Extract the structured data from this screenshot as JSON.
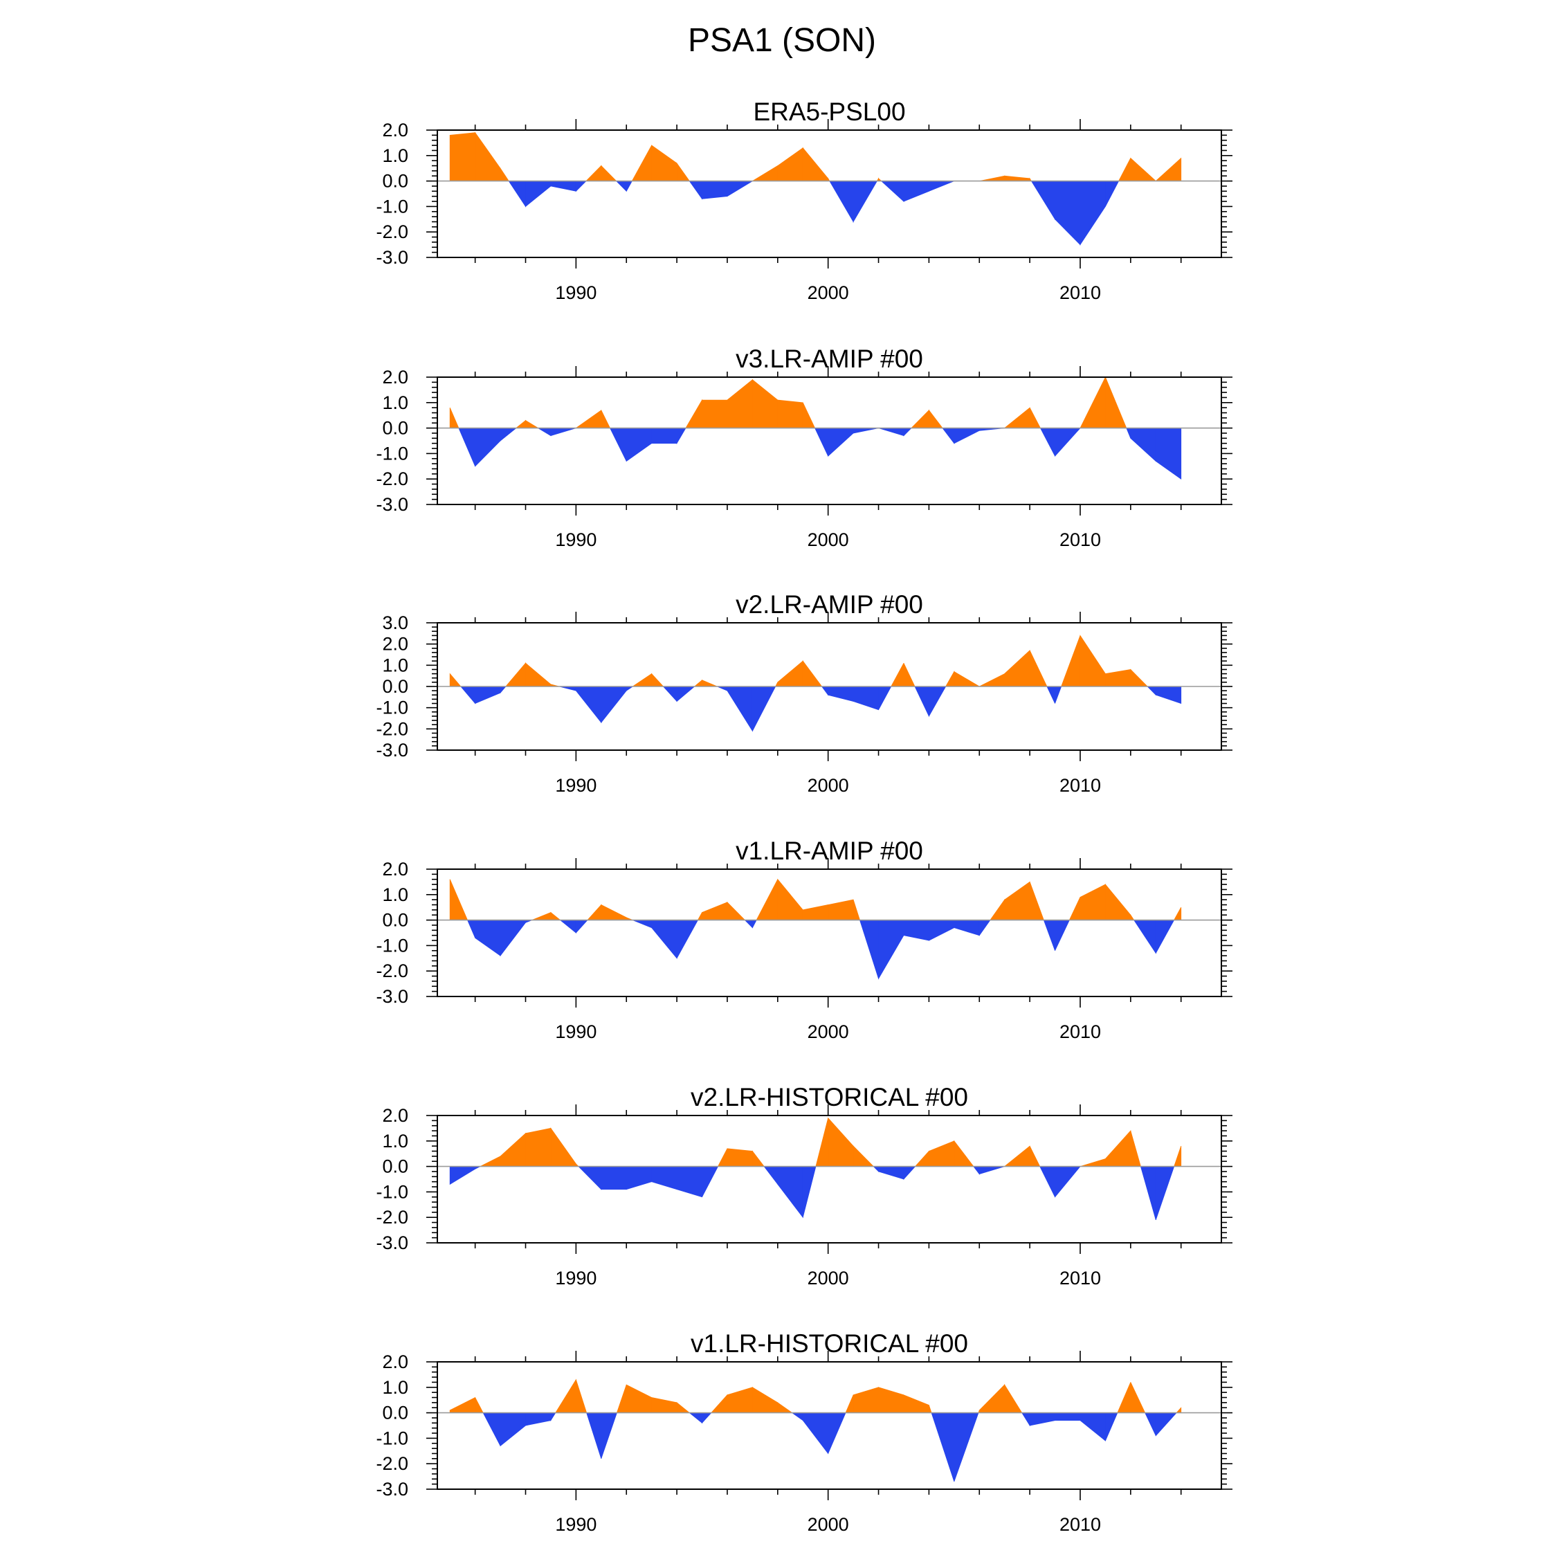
{
  "title": "PSA1 (SON)",
  "colors": {
    "positive": "#ff7f00",
    "negative": "#2644ec",
    "frame": "#000000",
    "zero_line": "#9a9a9a"
  },
  "chart_data": [
    {
      "type": "area",
      "title": "ERA5-PSL00",
      "xlabel": "",
      "ylabel": "",
      "xlim": [
        1984.5,
        2015.6
      ],
      "ylim": [
        -3.0,
        2.0
      ],
      "x": [
        1985,
        1986,
        1987,
        1988,
        1989,
        1990,
        1991,
        1992,
        1993,
        1994,
        1995,
        1996,
        1997,
        1998,
        1999,
        2000,
        2001,
        2002,
        2003,
        2004,
        2005,
        2006,
        2007,
        2008,
        2009,
        2010,
        2011,
        2012,
        2013,
        2014
      ],
      "values": [
        1.8,
        1.9,
        0.5,
        -1.0,
        -0.2,
        -0.4,
        0.6,
        -0.4,
        1.4,
        0.7,
        -0.7,
        -0.6,
        0.0,
        0.6,
        1.3,
        0.1,
        -1.6,
        0.1,
        -0.8,
        -0.4,
        0.0,
        0.0,
        0.2,
        0.1,
        -1.5,
        -2.5,
        -1.0,
        0.9,
        0.0,
        0.9
      ],
      "yticks": [
        2.0,
        1.0,
        0.0,
        -1.0,
        -2.0,
        -3.0
      ],
      "ytick_labels": [
        "2.0",
        "1.0",
        "0.0",
        "-1.0",
        "-2.0",
        "-3.0"
      ],
      "xticks": [
        1990,
        2000,
        2010
      ],
      "xtick_labels": [
        "1990",
        "2000",
        "2010"
      ]
    },
    {
      "type": "area",
      "title": "v3.LR-AMIP  #00",
      "xlabel": "",
      "ylabel": "",
      "xlim": [
        1984.5,
        2015.6
      ],
      "ylim": [
        -3.0,
        2.0
      ],
      "x": [
        1985,
        1986,
        1987,
        1988,
        1989,
        1990,
        1991,
        1992,
        1993,
        1994,
        1995,
        1996,
        1997,
        1998,
        1999,
        2000,
        2001,
        2002,
        2003,
        2004,
        2005,
        2006,
        2007,
        2008,
        2009,
        2010,
        2011,
        2012,
        2013,
        2014
      ],
      "values": [
        0.8,
        -1.5,
        -0.5,
        0.3,
        -0.3,
        0.0,
        0.7,
        -1.3,
        -0.6,
        -0.6,
        1.1,
        1.1,
        1.9,
        1.1,
        1.0,
        -1.1,
        -0.2,
        0.0,
        -0.3,
        0.7,
        -0.6,
        -0.1,
        0.0,
        0.8,
        -1.1,
        0.0,
        2.0,
        -0.4,
        -1.3,
        -2.0
      ],
      "yticks": [
        2.0,
        1.0,
        0.0,
        -1.0,
        -2.0,
        -3.0
      ],
      "ytick_labels": [
        "2.0",
        "1.0",
        "0.0",
        "-1.0",
        "-2.0",
        "-3.0"
      ],
      "xticks": [
        1990,
        2000,
        2010
      ],
      "xtick_labels": [
        "1990",
        "2000",
        "2010"
      ]
    },
    {
      "type": "area",
      "title": "v2.LR-AMIP  #00",
      "xlabel": "",
      "ylabel": "",
      "xlim": [
        1984.5,
        2015.6
      ],
      "ylim": [
        -3.0,
        3.0
      ],
      "x": [
        1985,
        1986,
        1987,
        1988,
        1989,
        1990,
        1991,
        1992,
        1993,
        1994,
        1995,
        1996,
        1997,
        1998,
        1999,
        2000,
        2001,
        2002,
        2003,
        2004,
        2005,
        2006,
        2007,
        2008,
        2009,
        2010,
        2011,
        2012,
        2013,
        2014
      ],
      "values": [
        0.6,
        -0.8,
        -0.3,
        1.1,
        0.1,
        -0.2,
        -1.7,
        -0.2,
        0.6,
        -0.7,
        0.3,
        -0.2,
        -2.1,
        0.2,
        1.2,
        -0.4,
        -0.7,
        -1.1,
        1.1,
        -1.4,
        0.7,
        0.0,
        0.6,
        1.7,
        -0.8,
        2.4,
        0.6,
        0.8,
        -0.4,
        -0.8
      ],
      "yticks": [
        3.0,
        2.0,
        1.0,
        0.0,
        -1.0,
        -2.0,
        -3.0
      ],
      "ytick_labels": [
        "3.0",
        "2.0",
        "1.0",
        "0.0",
        "-1.0",
        "-2.0",
        "-3.0"
      ],
      "xticks": [
        1990,
        2000,
        2010
      ],
      "xtick_labels": [
        "1990",
        "2000",
        "2010"
      ]
    },
    {
      "type": "area",
      "title": "v1.LR-AMIP  #00",
      "xlabel": "",
      "ylabel": "",
      "xlim": [
        1984.5,
        2015.6
      ],
      "ylim": [
        -3.0,
        2.0
      ],
      "x": [
        1985,
        1986,
        1987,
        1988,
        1989,
        1990,
        1991,
        1992,
        1993,
        1994,
        1995,
        1996,
        1997,
        1998,
        1999,
        2000,
        2001,
        2002,
        2003,
        2004,
        2005,
        2006,
        2007,
        2008,
        2009,
        2010,
        2011,
        2012,
        2013,
        2014
      ],
      "values": [
        1.6,
        -0.7,
        -1.4,
        -0.1,
        0.3,
        -0.5,
        0.6,
        0.1,
        -0.3,
        -1.5,
        0.3,
        0.7,
        -0.3,
        1.6,
        0.4,
        0.6,
        0.8,
        -2.3,
        -0.6,
        -0.8,
        -0.3,
        -0.6,
        0.8,
        1.5,
        -1.2,
        0.9,
        1.4,
        0.2,
        -1.3,
        0.5
      ],
      "yticks": [
        2.0,
        1.0,
        0.0,
        -1.0,
        -2.0,
        -3.0
      ],
      "ytick_labels": [
        "2.0",
        "1.0",
        "0.0",
        "-1.0",
        "-2.0",
        "-3.0"
      ],
      "xticks": [
        1990,
        2000,
        2010
      ],
      "xtick_labels": [
        "1990",
        "2000",
        "2010"
      ]
    },
    {
      "type": "area",
      "title": "v2.LR-HISTORICAL  #00",
      "xlabel": "",
      "ylabel": "",
      "xlim": [
        1984.5,
        2015.6
      ],
      "ylim": [
        -3.0,
        2.0
      ],
      "x": [
        1985,
        1986,
        1987,
        1988,
        1989,
        1990,
        1991,
        1992,
        1993,
        1994,
        1995,
        1996,
        1997,
        1998,
        1999,
        2000,
        2001,
        2002,
        2003,
        2004,
        2005,
        2006,
        2007,
        2008,
        2009,
        2010,
        2011,
        2012,
        2013,
        2014
      ],
      "values": [
        -0.7,
        -0.1,
        0.4,
        1.3,
        1.5,
        0.1,
        -0.9,
        -0.9,
        -0.6,
        -0.9,
        -1.2,
        0.7,
        0.6,
        -0.7,
        -2.0,
        1.9,
        0.8,
        -0.2,
        -0.5,
        0.6,
        1.0,
        -0.3,
        0.0,
        0.8,
        -1.2,
        0.0,
        0.3,
        1.4,
        -2.1,
        0.8
      ],
      "yticks": [
        2.0,
        1.0,
        0.0,
        -1.0,
        -2.0,
        -3.0
      ],
      "ytick_labels": [
        "2.0",
        "1.0",
        "0.0",
        "-1.0",
        "-2.0",
        "-3.0"
      ],
      "xticks": [
        1990,
        2000,
        2010
      ],
      "xtick_labels": [
        "1990",
        "2000",
        "2010"
      ]
    },
    {
      "type": "area",
      "title": "v1.LR-HISTORICAL  #00",
      "xlabel": "",
      "ylabel": "",
      "xlim": [
        1984.5,
        2015.6
      ],
      "ylim": [
        -3.0,
        2.0
      ],
      "x": [
        1985,
        1986,
        1987,
        1988,
        1989,
        1990,
        1991,
        1992,
        1993,
        1994,
        1995,
        1996,
        1997,
        1998,
        1999,
        2000,
        2001,
        2002,
        2003,
        2004,
        2005,
        2006,
        2007,
        2008,
        2009,
        2010,
        2011,
        2012,
        2013,
        2014
      ],
      "values": [
        0.1,
        0.6,
        -1.3,
        -0.5,
        -0.3,
        1.3,
        -1.8,
        1.1,
        0.6,
        0.4,
        -0.4,
        0.7,
        1.0,
        0.4,
        -0.3,
        -1.6,
        0.7,
        1.0,
        0.7,
        0.3,
        -2.7,
        0.1,
        1.1,
        -0.5,
        -0.3,
        -0.3,
        -1.1,
        1.2,
        -0.9,
        0.2
      ],
      "yticks": [
        2.0,
        1.0,
        0.0,
        -1.0,
        -2.0,
        -3.0
      ],
      "ytick_labels": [
        "2.0",
        "1.0",
        "0.0",
        "-1.0",
        "-2.0",
        "-3.0"
      ],
      "xticks": [
        1990,
        2000,
        2010
      ],
      "xtick_labels": [
        "1990",
        "2000",
        "2010"
      ]
    }
  ]
}
